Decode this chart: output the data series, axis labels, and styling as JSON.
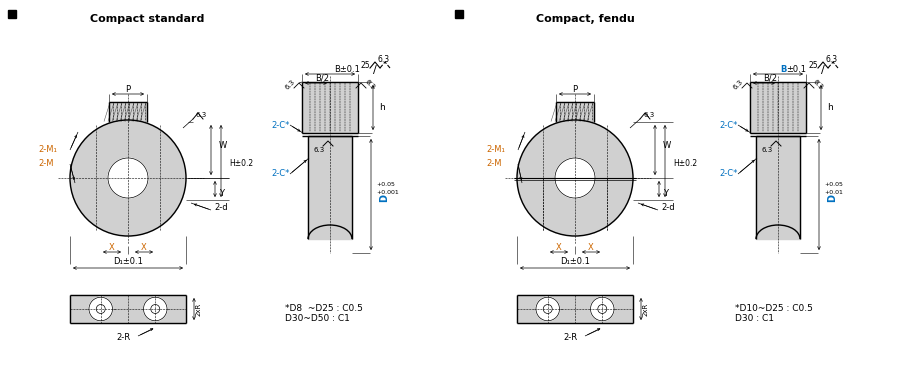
{
  "title_left": "Compact standard",
  "title_right": "Compact, fendu",
  "bg_color": "#ffffff",
  "text_color": "#000000",
  "blue_color": "#0070C0",
  "orange_color": "#CC6600",
  "gray_color": "#d0d0d0",
  "note_left": "*D8  ~D25 : C0.5\nD30~D50 : C1",
  "note_right": "*D10~D25 : C0.5\nD30 : C1"
}
